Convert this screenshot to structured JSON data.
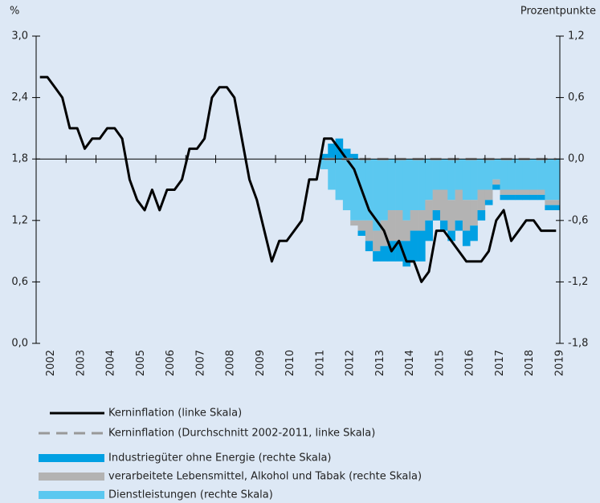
{
  "chart_data": {
    "type": "combo",
    "ylabel": "%",
    "y2label": "Prozentpunkte",
    "categories": [
      "2002",
      null,
      null,
      null,
      "2003",
      null,
      null,
      null,
      "2004",
      null,
      null,
      null,
      "2005",
      null,
      null,
      null,
      "2006",
      null,
      null,
      null,
      "2007",
      null,
      null,
      null,
      "2008",
      null,
      null,
      null,
      "2009",
      null,
      null,
      null,
      "2010",
      null,
      null,
      null,
      "2011",
      null,
      null,
      null,
      "2012",
      null,
      null,
      null,
      "2013",
      null,
      null,
      null,
      "2014",
      null,
      null,
      null,
      "2015",
      null,
      null,
      null,
      "2016",
      null,
      null,
      null,
      "2017",
      null,
      null,
      null,
      "2018",
      null,
      null,
      null,
      "2019",
      null
    ],
    "ylim": [
      0,
      3
    ],
    "yticks": [
      {
        "value": 0,
        "label": "0,0"
      },
      {
        "value": 0.6,
        "label": "0,6"
      },
      {
        "value": 1.2,
        "label": "1,2"
      },
      {
        "value": 1.8,
        "label": "1,8"
      },
      {
        "value": 2.4,
        "label": "2,4"
      },
      {
        "value": 3,
        "label": "3,0"
      }
    ],
    "y2lim": [
      -1.8,
      1.2
    ],
    "y2ticks": [
      {
        "value": -1.8,
        "label": "-1,8"
      },
      {
        "value": -1.2,
        "label": "-1,2"
      },
      {
        "value": -0.6,
        "label": "-0,6"
      },
      {
        "value": 0,
        "label": "0,0"
      },
      {
        "value": 0.6,
        "label": "0,6"
      },
      {
        "value": 1.2,
        "label": "1,2"
      }
    ],
    "series": [
      {
        "name": "Kerninflation (linke Skala)",
        "kind": "line",
        "color": "#000000",
        "values": [
          2.6,
          2.6,
          2.5,
          2.4,
          2.1,
          2.1,
          1.9,
          2.0,
          2.0,
          2.1,
          2.1,
          2.0,
          1.6,
          1.4,
          1.3,
          1.5,
          1.3,
          1.5,
          1.5,
          1.6,
          1.9,
          1.9,
          2.0,
          2.4,
          2.5,
          2.5,
          2.4,
          2.0,
          1.6,
          1.4,
          1.1,
          0.8,
          1.0,
          1.0,
          1.1,
          1.2,
          1.6,
          1.6,
          2.0,
          2.0,
          1.9,
          1.8,
          1.7,
          1.5,
          1.3,
          1.2,
          1.1,
          0.9,
          1.0,
          0.8,
          0.8,
          0.6,
          0.7,
          1.1,
          1.1,
          1.0,
          0.9,
          0.8,
          0.8,
          0.8,
          0.9,
          1.2,
          1.3,
          1.0,
          1.1,
          1.2,
          1.2,
          1.1,
          1.1,
          1.1
        ]
      },
      {
        "name": "Kerninflation (Durchschnitt 2002-2011, linke Skala)",
        "kind": "dashed",
        "color": "#999999",
        "values": [
          null,
          null,
          null,
          null,
          null,
          null,
          null,
          null,
          null,
          null,
          null,
          null,
          null,
          null,
          null,
          null,
          null,
          null,
          null,
          null,
          null,
          null,
          null,
          null,
          null,
          null,
          null,
          null,
          null,
          null,
          null,
          null,
          null,
          null,
          null,
          null,
          null,
          null,
          1.8,
          1.8,
          1.8,
          1.8,
          1.8,
          1.8,
          1.8,
          1.8,
          1.8,
          1.8,
          1.8,
          1.8,
          1.8,
          1.8,
          1.8,
          1.8,
          1.8,
          1.8,
          1.8,
          1.8,
          1.8,
          1.8,
          1.8,
          1.8,
          1.8,
          1.8,
          1.8,
          1.8,
          1.8,
          1.8,
          1.8,
          1.8
        ]
      },
      {
        "name": "Industriegüter ohne Energie (rechte Skala)",
        "kind": "bar",
        "axis": "y2",
        "color": "#00a0e3",
        "values": [
          null,
          null,
          null,
          null,
          null,
          null,
          null,
          null,
          null,
          null,
          null,
          null,
          null,
          null,
          null,
          null,
          null,
          null,
          null,
          null,
          null,
          null,
          null,
          null,
          null,
          null,
          null,
          null,
          null,
          null,
          null,
          null,
          null,
          null,
          null,
          null,
          null,
          null,
          0.05,
          0.15,
          0.2,
          0.1,
          0.05,
          -0.05,
          -0.1,
          -0.1,
          -0.15,
          -0.2,
          -0.2,
          -0.25,
          -0.3,
          -0.3,
          -0.2,
          -0.1,
          -0.1,
          -0.1,
          -0.1,
          -0.15,
          -0.15,
          -0.1,
          -0.05,
          -0.05,
          -0.05,
          -0.05,
          -0.05,
          -0.05,
          -0.05,
          -0.05,
          -0.05,
          -0.05
        ]
      },
      {
        "name": "verarbeitete Lebensmittel, Alkohol und Tabak (rechte Skala)",
        "kind": "bar",
        "axis": "y2",
        "color": "#b3b3b3",
        "values": [
          null,
          null,
          null,
          null,
          null,
          null,
          null,
          null,
          null,
          null,
          null,
          null,
          null,
          null,
          null,
          null,
          null,
          null,
          null,
          null,
          null,
          null,
          null,
          null,
          null,
          null,
          null,
          null,
          null,
          null,
          null,
          null,
          null,
          null,
          null,
          null,
          null,
          null,
          0,
          0,
          0,
          0,
          -0.05,
          -0.1,
          -0.2,
          -0.2,
          -0.25,
          -0.3,
          -0.3,
          -0.2,
          -0.2,
          -0.2,
          -0.2,
          -0.2,
          -0.3,
          -0.3,
          -0.3,
          -0.3,
          -0.25,
          -0.2,
          -0.1,
          -0.05,
          -0.05,
          -0.05,
          -0.05,
          -0.05,
          -0.05,
          -0.05,
          -0.05,
          -0.05
        ]
      },
      {
        "name": "Dienstleistungen (rechte Skala)",
        "kind": "bar",
        "axis": "y2",
        "color": "#5bc8f0",
        "values": [
          null,
          null,
          null,
          null,
          null,
          null,
          null,
          null,
          null,
          null,
          null,
          null,
          null,
          null,
          null,
          null,
          null,
          null,
          null,
          null,
          null,
          null,
          null,
          null,
          null,
          null,
          null,
          null,
          null,
          null,
          null,
          null,
          null,
          null,
          null,
          null,
          null,
          null,
          -0.1,
          -0.3,
          -0.4,
          -0.5,
          -0.6,
          -0.6,
          -0.6,
          -0.7,
          -0.6,
          -0.5,
          -0.5,
          -0.6,
          -0.5,
          -0.5,
          -0.4,
          -0.3,
          -0.3,
          -0.4,
          -0.3,
          -0.4,
          -0.4,
          -0.3,
          -0.3,
          -0.2,
          -0.3,
          -0.3,
          -0.3,
          -0.3,
          -0.3,
          -0.3,
          -0.4,
          -0.4
        ]
      }
    ]
  }
}
